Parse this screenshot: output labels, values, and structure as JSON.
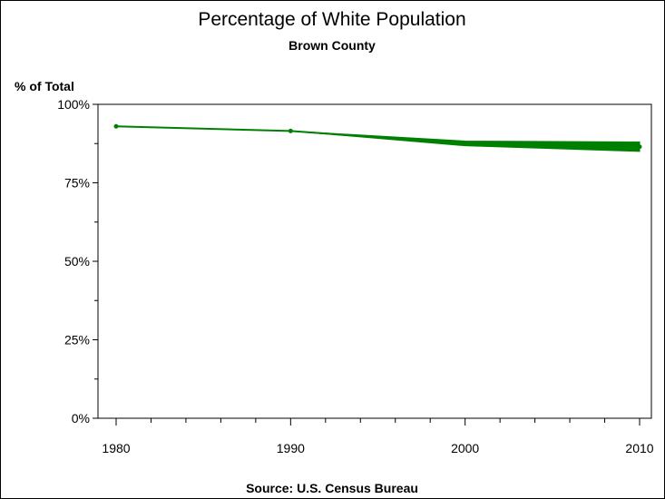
{
  "chart_data": {
    "type": "line",
    "title": "Percentage of White Population",
    "subtitle": "Brown County",
    "ylabel": "% of Total",
    "footnote": "Source: U.S. Census Bureau",
    "x_ticks": [
      "1980",
      "1990",
      "2000",
      "2010"
    ],
    "y_ticks": [
      "0%",
      "25%",
      "50%",
      "75%",
      "100%"
    ],
    "xlim": [
      1980,
      2010
    ],
    "ylim": [
      0,
      100
    ],
    "line_color": "#008000",
    "series": [
      {
        "values": [
          {
            "x": 1980,
            "y": 93.0
          },
          {
            "x": 1990,
            "y": 91.5
          },
          {
            "x": 2000,
            "y": 87.5
          },
          {
            "x": 2010,
            "y": 86.5
          }
        ],
        "band": [
          {
            "x": 1980,
            "low": 93.0,
            "high": 93.0
          },
          {
            "x": 1990,
            "low": 91.5,
            "high": 91.5
          },
          {
            "x": 2000,
            "low": 86.8,
            "high": 88.3
          },
          {
            "x": 2010,
            "low": 85.0,
            "high": 88.0
          }
        ]
      }
    ]
  }
}
